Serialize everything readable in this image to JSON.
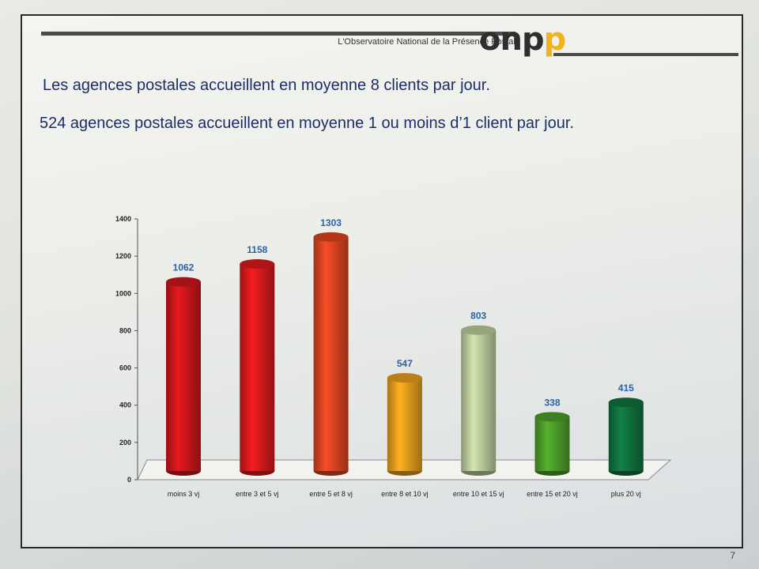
{
  "header": {
    "org_name": "L'Observatoire National de la Présence Postale",
    "logo_o": "on",
    "logo_p1": "p",
    "logo_p2": "p"
  },
  "headlines": [
    "Les agences postales accueillent en moyenne 8 clients par jour.",
    "524 agences postales accueillent en moyenne 1 ou moins d’1 client par jour."
  ],
  "page_number": "7",
  "chart_data": {
    "type": "bar",
    "title": "",
    "xlabel": "",
    "ylabel": "",
    "ylim": [
      0,
      1400
    ],
    "yticks": [
      0,
      200,
      400,
      600,
      800,
      1000,
      1200,
      1400
    ],
    "grid": false,
    "categories": [
      "moins 3 vj",
      "entre 3 et 5 vj",
      "entre 5 et 8 vj",
      "entre 8 et 10 vj",
      "entre 10 et 15 vj",
      "entre 15 et 20 vj",
      "plus 20 vj"
    ],
    "values": [
      1062,
      1158,
      1303,
      547,
      803,
      338,
      415
    ],
    "colors": [
      "#c8151b",
      "#d4191c",
      "#d8431f",
      "#e39b1c",
      "#b8c99a",
      "#4c9b2a",
      "#10703d"
    ],
    "value_label_color": "#2b62a8"
  }
}
